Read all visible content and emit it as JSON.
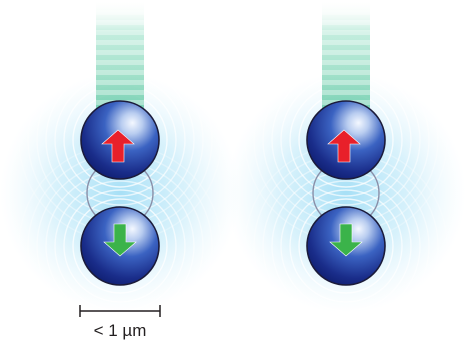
{
  "scale_bar": {
    "label": "< 1 µm"
  },
  "colors": {
    "background": "#ffffff",
    "glow": "#5fc6ef",
    "beam": "#38b98a",
    "sphere_light": "#dfe9f8",
    "sphere_mid": "#3b63c2",
    "sphere_dark": "#0e1d6e",
    "spin_up_arrow": "#e8202a",
    "spin_down_arrow": "#3bb34a",
    "scale_bar": "#231f20"
  },
  "pairs": [
    {
      "top_sphere": {
        "arrow": "up",
        "arrow_color_key": "spin_up_arrow"
      },
      "bottom_sphere": {
        "arrow": "down",
        "arrow_color_key": "spin_down_arrow"
      }
    },
    {
      "top_sphere": {
        "arrow": "up",
        "arrow_color_key": "spin_up_arrow"
      },
      "bottom_sphere": {
        "arrow": "down",
        "arrow_color_key": "spin_down_arrow"
      }
    }
  ]
}
